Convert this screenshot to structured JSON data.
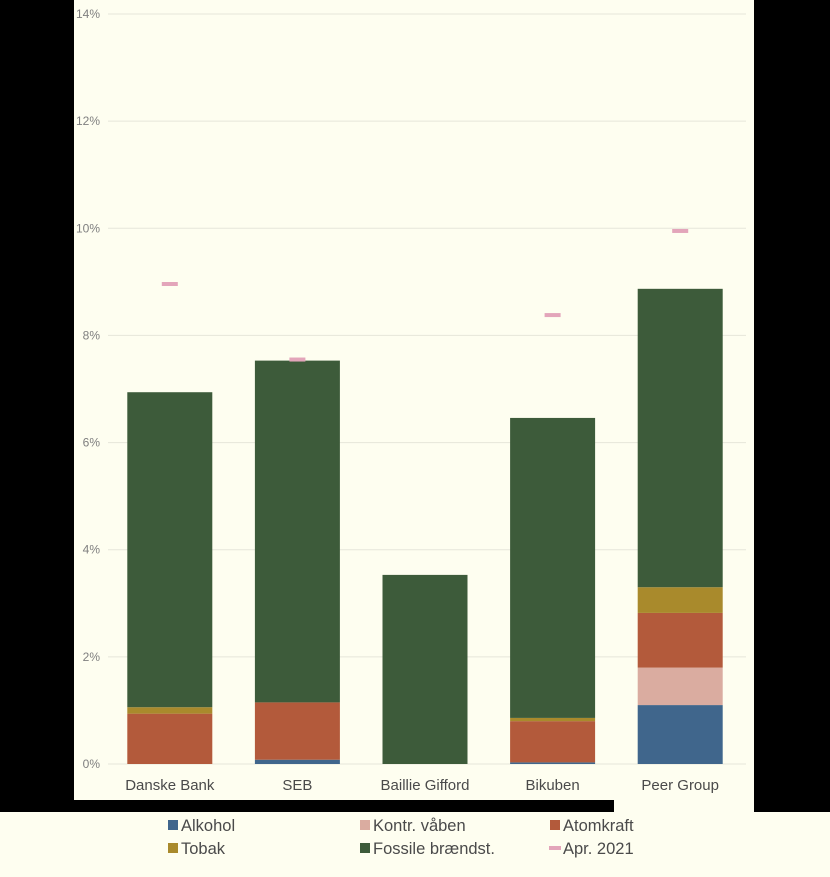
{
  "chart_data": {
    "type": "bar",
    "stacked": true,
    "title": "",
    "xlabel": "",
    "ylabel": "",
    "ylim": [
      0,
      14
    ],
    "yticks": [
      0,
      2,
      4,
      6,
      8,
      10,
      12,
      14
    ],
    "ytick_suffix": "%",
    "grid": true,
    "legend_position": "bottom",
    "categories": [
      "Danske Bank",
      "SEB",
      "Baillie Gifford",
      "Bikuben",
      "Peer Group"
    ],
    "series": [
      {
        "name": "Alkohol",
        "color": "#40668C",
        "values": [
          0.0,
          0.08,
          0.0,
          0.03,
          1.1
        ]
      },
      {
        "name": "Kontr. våben",
        "color": "#DAACA0",
        "values": [
          0.0,
          0.0,
          0.0,
          0.0,
          0.7
        ]
      },
      {
        "name": "Atomkraft",
        "color": "#B35A3B",
        "values": [
          0.94,
          1.07,
          0.0,
          0.77,
          1.02
        ]
      },
      {
        "name": "Tobak",
        "color": "#A98A2C",
        "values": [
          0.12,
          0.0,
          0.0,
          0.06,
          0.48
        ]
      },
      {
        "name": "Fossile brændst.",
        "color": "#3D5B3A",
        "values": [
          5.88,
          6.38,
          3.53,
          5.6,
          5.57
        ]
      }
    ],
    "markers": {
      "name": "Apr. 2021",
      "color": "#E3A5BA",
      "values": [
        8.96,
        7.55,
        null,
        8.38,
        9.95
      ]
    },
    "gridline_color": "#E6E6DA",
    "background_color": "#FEFEF0"
  }
}
